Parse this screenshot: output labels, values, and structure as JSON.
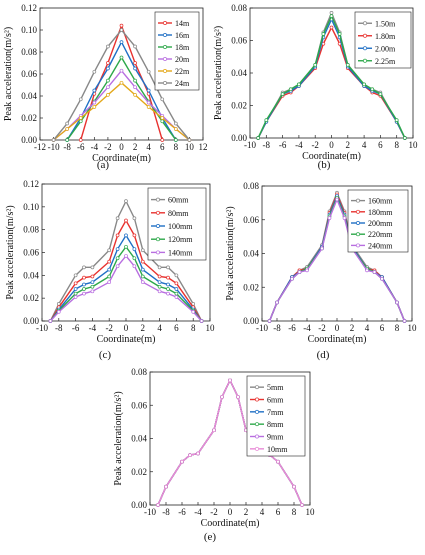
{
  "chart_data": [
    {
      "type": "line",
      "panel_label": "(a)",
      "xlabel": "Coordinate(m)",
      "ylabel": "Peak acceleration(m/s²)",
      "xlim": [
        -12,
        12
      ],
      "ylim": [
        0,
        0.12
      ],
      "xticks": [
        "-12",
        "-10",
        "-8",
        "-6",
        "-4",
        "-2",
        "0",
        "2",
        "4",
        "6",
        "8",
        "10",
        "12"
      ],
      "yticks": [
        "0.00",
        "0.02",
        "0.04",
        "0.06",
        "0.08",
        "0.10",
        "0.12"
      ],
      "legend_position": "top-right",
      "series": [
        {
          "name": "14m",
          "color": "#e8322f",
          "x": [
            -6,
            -4,
            -2,
            0,
            2,
            4,
            6
          ],
          "y": [
            0,
            0.042,
            0.07,
            0.104,
            0.07,
            0.042,
            0
          ]
        },
        {
          "name": "16m",
          "color": "#1f6fc5",
          "x": [
            -8,
            -6,
            -4,
            -2,
            0,
            2,
            4,
            6,
            8
          ],
          "y": [
            0,
            0.02,
            0.045,
            0.065,
            0.089,
            0.065,
            0.045,
            0.02,
            0
          ]
        },
        {
          "name": "18m",
          "color": "#2da84a",
          "x": [
            -8,
            -6,
            -4,
            -2,
            0,
            2,
            4,
            6,
            8
          ],
          "y": [
            0,
            0.017,
            0.035,
            0.054,
            0.075,
            0.054,
            0.035,
            0.017,
            0
          ]
        },
        {
          "name": "20m",
          "color": "#b86ee0",
          "x": [
            -10,
            -8,
            -6,
            -4,
            -2,
            0,
            2,
            4,
            6,
            8,
            10
          ],
          "y": [
            0,
            0.01,
            0.022,
            0.034,
            0.048,
            0.063,
            0.048,
            0.034,
            0.022,
            0.01,
            0
          ]
        },
        {
          "name": "22m",
          "color": "#e3a81a",
          "x": [
            -10,
            -8,
            -6,
            -4,
            -2,
            0,
            2,
            4,
            6,
            8,
            10
          ],
          "y": [
            0,
            0.01,
            0.02,
            0.03,
            0.041,
            0.052,
            0.041,
            0.03,
            0.02,
            0.01,
            0
          ]
        },
        {
          "name": "24m",
          "color": "#888888",
          "x": [
            -10,
            -8,
            -6,
            -4,
            -2,
            0,
            2,
            4,
            6,
            8,
            10
          ],
          "y": [
            0,
            0.015,
            0.037,
            0.062,
            0.085,
            0.1,
            0.085,
            0.062,
            0.037,
            0.015,
            0
          ]
        }
      ]
    },
    {
      "type": "line",
      "panel_label": "(b)",
      "xlabel": "Coordinate(m)",
      "ylabel": "Peak acceleration(m/s²)",
      "xlim": [
        -10,
        10
      ],
      "ylim": [
        0,
        0.08
      ],
      "xticks": [
        "-10",
        "-8",
        "-6",
        "-4",
        "-2",
        "0",
        "2",
        "4",
        "6",
        "8",
        "10"
      ],
      "yticks": [
        "0.00",
        "0.02",
        "0.04",
        "0.06",
        "0.08"
      ],
      "legend_position": "top-right",
      "series": [
        {
          "name": "1.50m",
          "color": "#888888",
          "x": [
            -9,
            -8,
            -6,
            -5,
            -4,
            -2,
            -1,
            0,
            1,
            2,
            4,
            5,
            6,
            8,
            9
          ],
          "y": [
            0,
            0.01,
            0.028,
            0.03,
            0.033,
            0.045,
            0.065,
            0.077,
            0.065,
            0.045,
            0.033,
            0.03,
            0.028,
            0.01,
            0
          ]
        },
        {
          "name": "1.80m",
          "color": "#e8322f",
          "x": [
            -9,
            -8,
            -6,
            -5,
            -4,
            -2,
            -1,
            0,
            1,
            2,
            4,
            5,
            6,
            8,
            9
          ],
          "y": [
            0,
            0.01,
            0.026,
            0.028,
            0.032,
            0.043,
            0.058,
            0.068,
            0.058,
            0.043,
            0.032,
            0.028,
            0.026,
            0.01,
            0
          ]
        },
        {
          "name": "2.00m",
          "color": "#1f6fc5",
          "x": [
            -9,
            -8,
            -6,
            -5,
            -4,
            -2,
            -1,
            0,
            1,
            2,
            4,
            5,
            6,
            8,
            9
          ],
          "y": [
            0,
            0.01,
            0.027,
            0.029,
            0.032,
            0.044,
            0.062,
            0.073,
            0.062,
            0.044,
            0.032,
            0.029,
            0.027,
            0.01,
            0
          ]
        },
        {
          "name": "2.25m",
          "color": "#2da84a",
          "x": [
            -9,
            -8,
            -6,
            -5,
            -4,
            -2,
            -1,
            0,
            1,
            2,
            4,
            5,
            6,
            8,
            9
          ],
          "y": [
            0,
            0.011,
            0.027,
            0.03,
            0.033,
            0.045,
            0.064,
            0.075,
            0.064,
            0.045,
            0.033,
            0.03,
            0.027,
            0.011,
            0
          ]
        }
      ]
    },
    {
      "type": "line",
      "panel_label": "(c)",
      "xlabel": "Coordinate(m)",
      "ylabel": "Peak acceleration(m/s²)",
      "xlim": [
        -10,
        10
      ],
      "ylim": [
        0,
        0.12
      ],
      "xticks": [
        "-10",
        "-8",
        "-6",
        "-4",
        "-2",
        "0",
        "2",
        "4",
        "6",
        "8",
        "10"
      ],
      "yticks": [
        "0.00",
        "0.02",
        "0.04",
        "0.06",
        "0.08",
        "0.10",
        "0.12"
      ],
      "legend_position": "top-right",
      "series": [
        {
          "name": "60mm",
          "color": "#888888",
          "x": [
            -9,
            -8,
            -6,
            -5,
            -4,
            -2,
            -1,
            0,
            1,
            2,
            4,
            5,
            6,
            8,
            9
          ],
          "y": [
            0,
            0.015,
            0.04,
            0.047,
            0.047,
            0.062,
            0.09,
            0.105,
            0.09,
            0.062,
            0.047,
            0.047,
            0.04,
            0.015,
            0
          ]
        },
        {
          "name": "80mm",
          "color": "#e8322f",
          "x": [
            -9,
            -8,
            -6,
            -5,
            -4,
            -2,
            -1,
            0,
            1,
            2,
            4,
            5,
            6,
            8,
            9
          ],
          "y": [
            0,
            0.012,
            0.033,
            0.038,
            0.039,
            0.052,
            0.075,
            0.088,
            0.075,
            0.052,
            0.039,
            0.038,
            0.033,
            0.012,
            0
          ]
        },
        {
          "name": "100mm",
          "color": "#1f6fc5",
          "x": [
            -9,
            -8,
            -6,
            -5,
            -4,
            -2,
            -1,
            0,
            1,
            2,
            4,
            5,
            6,
            8,
            9
          ],
          "y": [
            0,
            0.01,
            0.028,
            0.032,
            0.034,
            0.045,
            0.063,
            0.075,
            0.063,
            0.045,
            0.034,
            0.032,
            0.028,
            0.01,
            0
          ]
        },
        {
          "name": "120mm",
          "color": "#2da84a",
          "x": [
            -9,
            -8,
            -6,
            -5,
            -4,
            -2,
            -1,
            0,
            1,
            2,
            4,
            5,
            6,
            8,
            9
          ],
          "y": [
            0,
            0.009,
            0.024,
            0.028,
            0.03,
            0.039,
            0.055,
            0.065,
            0.055,
            0.039,
            0.03,
            0.028,
            0.024,
            0.009,
            0
          ]
        },
        {
          "name": "140mm",
          "color": "#b86ee0",
          "x": [
            -9,
            -8,
            -6,
            -5,
            -4,
            -2,
            -1,
            0,
            1,
            2,
            4,
            5,
            6,
            8,
            9
          ],
          "y": [
            0,
            0.008,
            0.021,
            0.024,
            0.026,
            0.034,
            0.048,
            0.057,
            0.048,
            0.034,
            0.026,
            0.024,
            0.021,
            0.008,
            0
          ]
        }
      ]
    },
    {
      "type": "line",
      "panel_label": "(d)",
      "xlabel": "Coordinate(m)",
      "ylabel": "Peak acceleration(m/s²)",
      "xlim": [
        -10,
        10
      ],
      "ylim": [
        0,
        0.08
      ],
      "xticks": [
        "-10",
        "-8",
        "-6",
        "-4",
        "-2",
        "0",
        "2",
        "4",
        "6",
        "8",
        "10"
      ],
      "yticks": [
        "0.00",
        "0.02",
        "0.04",
        "0.06",
        "0.08"
      ],
      "legend_position": "top-right",
      "series": [
        {
          "name": "160mm",
          "color": "#888888",
          "x": [
            -9,
            -8,
            -6,
            -5,
            -4,
            -2,
            -1,
            0,
            1,
            2,
            4,
            5,
            6,
            8,
            9
          ],
          "y": [
            0,
            0.011,
            0.026,
            0.03,
            0.032,
            0.045,
            0.065,
            0.076,
            0.065,
            0.045,
            0.032,
            0.03,
            0.026,
            0.011,
            0
          ]
        },
        {
          "name": "180mm",
          "color": "#e8322f",
          "x": [
            -9,
            -8,
            -6,
            -5,
            -4,
            -2,
            -1,
            0,
            1,
            2,
            4,
            5,
            6,
            8,
            9
          ],
          "y": [
            0,
            0.011,
            0.026,
            0.03,
            0.031,
            0.044,
            0.064,
            0.075,
            0.064,
            0.044,
            0.031,
            0.03,
            0.026,
            0.011,
            0
          ]
        },
        {
          "name": "200mm",
          "color": "#1f6fc5",
          "x": [
            -9,
            -8,
            -6,
            -5,
            -4,
            -2,
            -1,
            0,
            1,
            2,
            4,
            5,
            6,
            8,
            9
          ],
          "y": [
            0,
            0.011,
            0.026,
            0.029,
            0.031,
            0.044,
            0.063,
            0.074,
            0.063,
            0.044,
            0.031,
            0.029,
            0.026,
            0.011,
            0
          ]
        },
        {
          "name": "220mm",
          "color": "#2da84a",
          "x": [
            -9,
            -8,
            -6,
            -5,
            -4,
            -2,
            -1,
            0,
            1,
            2,
            4,
            5,
            6,
            8,
            9
          ],
          "y": [
            0,
            0.011,
            0.025,
            0.029,
            0.031,
            0.043,
            0.062,
            0.073,
            0.062,
            0.043,
            0.031,
            0.029,
            0.025,
            0.011,
            0
          ]
        },
        {
          "name": "240mm",
          "color": "#b86ee0",
          "x": [
            -9,
            -8,
            -6,
            -5,
            -4,
            -2,
            -1,
            0,
            1,
            2,
            4,
            5,
            6,
            8,
            9
          ],
          "y": [
            0,
            0.011,
            0.025,
            0.029,
            0.03,
            0.043,
            0.061,
            0.072,
            0.061,
            0.043,
            0.03,
            0.029,
            0.025,
            0.011,
            0
          ]
        }
      ]
    },
    {
      "type": "line",
      "panel_label": "(e)",
      "xlabel": "Coordinate(m)",
      "ylabel": "Peak acceleration(m/s²)",
      "xlim": [
        -10,
        10
      ],
      "ylim": [
        0,
        0.08
      ],
      "xticks": [
        "-10",
        "-8",
        "-6",
        "-4",
        "-2",
        "0",
        "2",
        "4",
        "6",
        "8",
        "10"
      ],
      "yticks": [
        "0.00",
        "0.02",
        "0.04",
        "0.06",
        "0.08"
      ],
      "legend_position": "top-right",
      "series": [
        {
          "name": "5mm",
          "color": "#888888",
          "x": [
            -9,
            -8,
            -6,
            -5,
            -4,
            -2,
            -1,
            0,
            1,
            2,
            4,
            5,
            6,
            8,
            9
          ],
          "y": [
            0,
            0.011,
            0.026,
            0.03,
            0.031,
            0.045,
            0.065,
            0.075,
            0.065,
            0.045,
            0.031,
            0.03,
            0.026,
            0.011,
            0
          ]
        },
        {
          "name": "6mm",
          "color": "#e8322f",
          "x": [
            -9,
            -8,
            -6,
            -5,
            -4,
            -2,
            -1,
            0,
            1,
            2,
            4,
            5,
            6,
            8,
            9
          ],
          "y": [
            0,
            0.011,
            0.026,
            0.03,
            0.031,
            0.045,
            0.065,
            0.075,
            0.065,
            0.045,
            0.031,
            0.03,
            0.026,
            0.011,
            0
          ]
        },
        {
          "name": "7mm",
          "color": "#1f6fc5",
          "x": [
            -9,
            -8,
            -6,
            -5,
            -4,
            -2,
            -1,
            0,
            1,
            2,
            4,
            5,
            6,
            8,
            9
          ],
          "y": [
            0,
            0.011,
            0.026,
            0.03,
            0.031,
            0.045,
            0.065,
            0.075,
            0.065,
            0.045,
            0.031,
            0.03,
            0.026,
            0.011,
            0
          ]
        },
        {
          "name": "8mm",
          "color": "#2da84a",
          "x": [
            -9,
            -8,
            -6,
            -5,
            -4,
            -2,
            -1,
            0,
            1,
            2,
            4,
            5,
            6,
            8,
            9
          ],
          "y": [
            0,
            0.011,
            0.026,
            0.03,
            0.031,
            0.045,
            0.065,
            0.075,
            0.065,
            0.045,
            0.031,
            0.03,
            0.026,
            0.011,
            0
          ]
        },
        {
          "name": "9mm",
          "color": "#b86ee0",
          "x": [
            -9,
            -8,
            -6,
            -5,
            -4,
            -2,
            -1,
            0,
            1,
            2,
            4,
            5,
            6,
            8,
            9
          ],
          "y": [
            0,
            0.011,
            0.026,
            0.03,
            0.031,
            0.045,
            0.065,
            0.075,
            0.065,
            0.045,
            0.031,
            0.03,
            0.026,
            0.011,
            0
          ]
        },
        {
          "name": "10mm",
          "color": "#e88ad6",
          "x": [
            -9,
            -8,
            -6,
            -5,
            -4,
            -2,
            -1,
            0,
            1,
            2,
            4,
            5,
            6,
            8,
            9
          ],
          "y": [
            0,
            0.011,
            0.026,
            0.03,
            0.031,
            0.045,
            0.065,
            0.075,
            0.065,
            0.045,
            0.031,
            0.03,
            0.026,
            0.011,
            0
          ]
        }
      ]
    }
  ]
}
